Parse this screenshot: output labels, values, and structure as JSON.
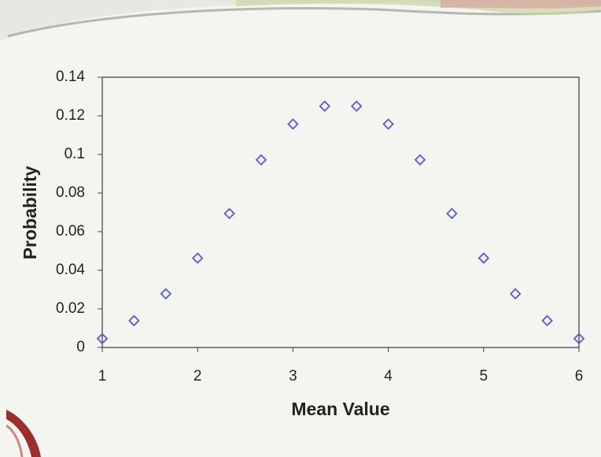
{
  "chart_data": {
    "type": "scatter",
    "x_label": "Mean Value",
    "y_label": "Probability",
    "x": [
      1,
      1.3333,
      1.6667,
      2,
      2.3333,
      2.6667,
      3,
      3.3333,
      3.6667,
      4,
      4.3333,
      4.6667,
      5,
      5.3333,
      5.6667,
      6
    ],
    "values": [
      0.0046,
      0.0139,
      0.0278,
      0.0463,
      0.0694,
      0.0972,
      0.1157,
      0.125,
      0.125,
      0.1157,
      0.0972,
      0.0694,
      0.0463,
      0.0278,
      0.0139,
      0.0046
    ],
    "color": "#5a5ad2",
    "marker": "diamond",
    "xlim": [
      1,
      6
    ],
    "xticks": [
      1,
      2,
      3,
      4,
      5,
      6
    ],
    "ylim": [
      0,
      0.14
    ],
    "yticks": [
      0,
      0.02,
      0.04,
      0.06,
      0.08,
      0.1,
      0.12,
      0.14
    ],
    "grid": false
  }
}
